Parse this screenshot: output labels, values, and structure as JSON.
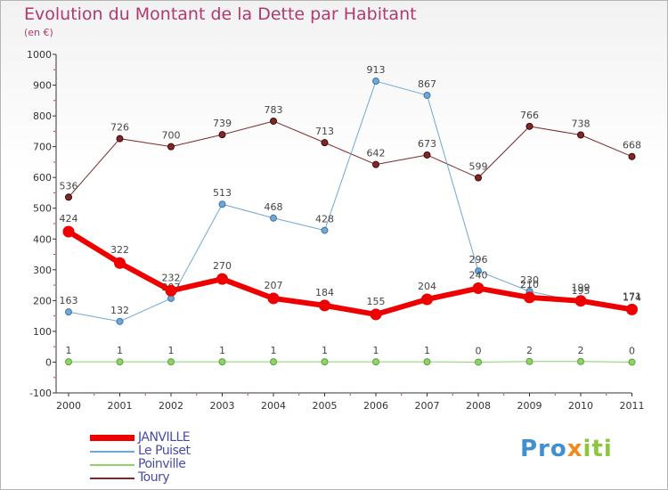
{
  "chart_data": {
    "type": "line",
    "title": "Evolution du Montant de la Dette par Habitant",
    "subtitle": "(en €)",
    "categories": [
      "2000",
      "2001",
      "2002",
      "2003",
      "2004",
      "2005",
      "2006",
      "2007",
      "2008",
      "2009",
      "2010",
      "2011"
    ],
    "ylim": [
      -100,
      1000
    ],
    "yticks": [
      -100,
      0,
      100,
      200,
      300,
      400,
      500,
      600,
      700,
      800,
      900,
      1000
    ],
    "grid": false,
    "legend_position": "bottom-left",
    "series": [
      {
        "name": "Toury",
        "color": "#7b2a2a",
        "width": 1,
        "marker": 3.5,
        "values": [
          536,
          726,
          700,
          739,
          783,
          713,
          642,
          673,
          599,
          766,
          738,
          668
        ]
      },
      {
        "name": "Le Puiset",
        "color": "#6fa7d6",
        "width": 1,
        "marker": 3.5,
        "values": [
          163,
          132,
          207,
          513,
          468,
          428,
          913,
          867,
          296,
          230,
          195,
          174
        ]
      },
      {
        "name": "Poinville",
        "color": "#8ed26a",
        "width": 1,
        "marker": 3.5,
        "values": [
          1,
          1,
          1,
          1,
          1,
          1,
          1,
          1,
          0,
          2,
          2,
          0
        ]
      },
      {
        "name": "JANVILLE",
        "color": "#ee0000",
        "width": 6,
        "marker": 6,
        "values": [
          424,
          322,
          232,
          270,
          207,
          184,
          155,
          204,
          240,
          210,
          199,
          171
        ]
      }
    ]
  },
  "legend_order": [
    "JANVILLE",
    "Le Puiset",
    "Poinville",
    "Toury"
  ],
  "logo": {
    "part1": "Pro",
    "part2": "x",
    "part3": "iti"
  }
}
